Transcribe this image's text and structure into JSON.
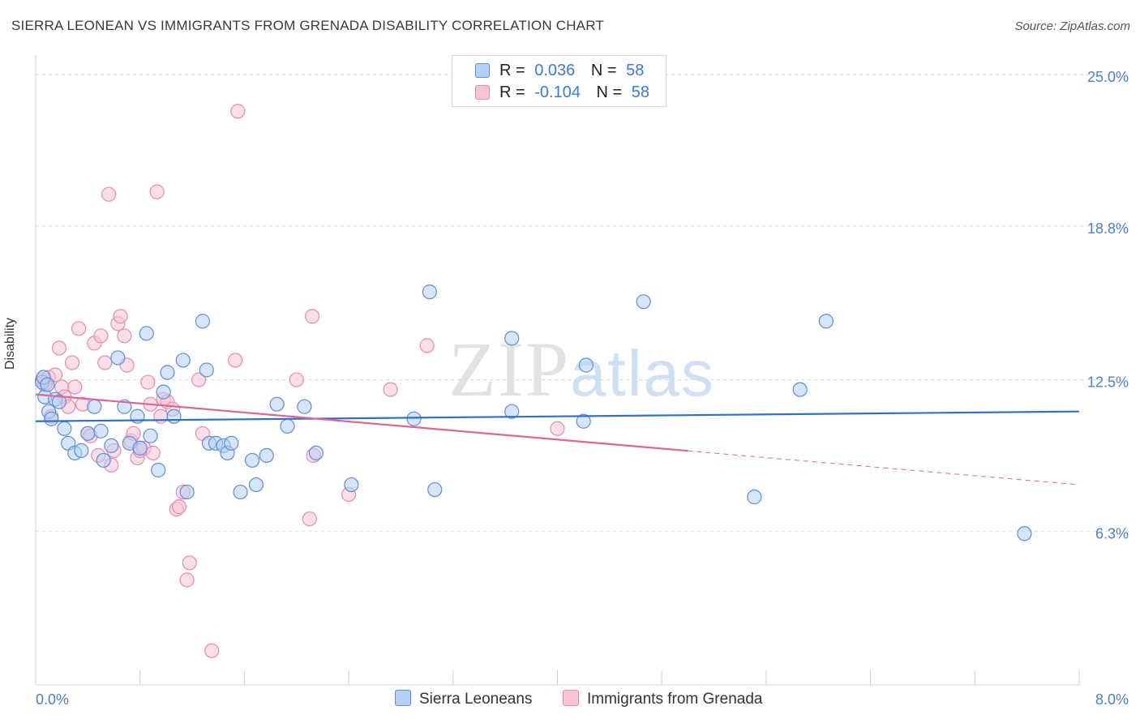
{
  "header": {
    "title": "SIERRA LEONEAN VS IMMIGRANTS FROM GRENADA DISABILITY CORRELATION CHART",
    "source": "Source: ZipAtlas.com"
  },
  "watermark": {
    "zip": "ZIP",
    "atlas": "atlas"
  },
  "legend": {
    "rows": [
      {
        "r_label": "R =",
        "r_value": "0.036",
        "n_label": "N =",
        "n_value": "58"
      },
      {
        "r_label": "R =",
        "r_value": "-0.104",
        "n_label": "N =",
        "n_value": "58"
      }
    ]
  },
  "bottom_legend": {
    "series1": "Sierra Leoneans",
    "series2": "Immigrants from Grenada"
  },
  "colors": {
    "blue_fill": "#b5d0f5",
    "blue_stroke": "#5a8fd8",
    "blue_line": "#2f6fce",
    "pink_fill": "#f8c3d5",
    "pink_stroke": "#e68bab",
    "pink_line": "#e06592",
    "tick_text": "#4a7fd0",
    "grid": "#d8d8d8"
  },
  "chart_data": {
    "type": "scatter",
    "title": "SIERRA LEONEAN VS IMMIGRANTS FROM GRENADA DISABILITY CORRELATION CHART",
    "xlabel": "",
    "ylabel": "Disability",
    "xlim": [
      0.0,
      8.0
    ],
    "ylim": [
      0.0,
      25.8
    ],
    "x_tick_labels": [
      "0.0%",
      "8.0%"
    ],
    "y_ticks": [
      6.3,
      12.5,
      18.8,
      25.0
    ],
    "y_tick_labels": [
      "6.3%",
      "12.5%",
      "18.8%",
      "25.0%"
    ],
    "grid": true,
    "legend_position": "top-center",
    "series": [
      {
        "name": "Sierra Leoneans",
        "r": 0.036,
        "n": 58,
        "trend": {
          "x": [
            0.0,
            8.0
          ],
          "y": [
            10.8,
            11.2
          ],
          "dashed_from": null
        },
        "points": [
          [
            0.05,
            12.4
          ],
          [
            0.07,
            11.8
          ],
          [
            0.1,
            11.2
          ],
          [
            0.12,
            10.9
          ],
          [
            0.15,
            11.7
          ],
          [
            0.18,
            11.6
          ],
          [
            0.22,
            10.5
          ],
          [
            0.25,
            9.9
          ],
          [
            0.3,
            9.5
          ],
          [
            0.35,
            9.6
          ],
          [
            0.4,
            10.3
          ],
          [
            0.45,
            11.4
          ],
          [
            0.5,
            10.4
          ],
          [
            0.52,
            9.2
          ],
          [
            0.58,
            9.8
          ],
          [
            0.63,
            13.4
          ],
          [
            0.68,
            11.4
          ],
          [
            0.72,
            9.9
          ],
          [
            0.78,
            11.0
          ],
          [
            0.8,
            9.7
          ],
          [
            0.85,
            14.4
          ],
          [
            0.88,
            10.2
          ],
          [
            0.94,
            8.8
          ],
          [
            0.98,
            12.0
          ],
          [
            1.01,
            12.8
          ],
          [
            1.06,
            11.0
          ],
          [
            1.13,
            13.3
          ],
          [
            1.16,
            7.9
          ],
          [
            1.28,
            14.9
          ],
          [
            1.31,
            12.9
          ],
          [
            1.33,
            9.9
          ],
          [
            1.38,
            9.9
          ],
          [
            1.44,
            9.8
          ],
          [
            1.47,
            9.5
          ],
          [
            1.5,
            9.9
          ],
          [
            1.57,
            7.9
          ],
          [
            1.66,
            9.2
          ],
          [
            1.69,
            8.2
          ],
          [
            1.77,
            9.4
          ],
          [
            1.85,
            11.5
          ],
          [
            1.93,
            10.6
          ],
          [
            2.06,
            11.4
          ],
          [
            2.15,
            9.5
          ],
          [
            2.42,
            8.2
          ],
          [
            2.9,
            10.9
          ],
          [
            3.02,
            16.1
          ],
          [
            3.06,
            8.0
          ],
          [
            3.65,
            11.2
          ],
          [
            3.65,
            14.2
          ],
          [
            4.2,
            10.8
          ],
          [
            4.22,
            13.1
          ],
          [
            4.66,
            15.7
          ],
          [
            5.51,
            7.7
          ],
          [
            5.86,
            12.1
          ],
          [
            6.06,
            14.9
          ],
          [
            7.58,
            6.2
          ],
          [
            0.06,
            12.6
          ],
          [
            0.09,
            12.3
          ]
        ]
      },
      {
        "name": "Immigrants from Grenada",
        "r": -0.104,
        "n": 58,
        "trend": {
          "x": [
            0.0,
            8.0
          ],
          "y": [
            11.9,
            8.2
          ],
          "dashed_from": 5.0
        },
        "points": [
          [
            0.05,
            12.5
          ],
          [
            0.08,
            12.4
          ],
          [
            0.1,
            12.6
          ],
          [
            0.12,
            11.0
          ],
          [
            0.15,
            12.7
          ],
          [
            0.18,
            13.8
          ],
          [
            0.2,
            12.2
          ],
          [
            0.22,
            11.8
          ],
          [
            0.25,
            11.4
          ],
          [
            0.28,
            13.2
          ],
          [
            0.3,
            12.2
          ],
          [
            0.33,
            14.6
          ],
          [
            0.36,
            11.5
          ],
          [
            0.4,
            10.3
          ],
          [
            0.42,
            10.2
          ],
          [
            0.45,
            14.0
          ],
          [
            0.48,
            9.4
          ],
          [
            0.5,
            14.3
          ],
          [
            0.53,
            13.2
          ],
          [
            0.56,
            20.1
          ],
          [
            0.58,
            9.0
          ],
          [
            0.6,
            9.6
          ],
          [
            0.63,
            14.8
          ],
          [
            0.65,
            15.1
          ],
          [
            0.68,
            14.3
          ],
          [
            0.7,
            13.1
          ],
          [
            0.73,
            10.0
          ],
          [
            0.75,
            10.3
          ],
          [
            0.78,
            9.3
          ],
          [
            0.8,
            9.6
          ],
          [
            0.83,
            9.7
          ],
          [
            0.86,
            12.4
          ],
          [
            0.88,
            11.5
          ],
          [
            0.9,
            9.5
          ],
          [
            0.93,
            20.2
          ],
          [
            0.96,
            11.0
          ],
          [
            0.98,
            11.7
          ],
          [
            1.01,
            11.6
          ],
          [
            1.05,
            11.3
          ],
          [
            1.08,
            7.2
          ],
          [
            1.1,
            7.3
          ],
          [
            1.13,
            7.9
          ],
          [
            1.16,
            4.3
          ],
          [
            1.18,
            5.0
          ],
          [
            1.25,
            12.5
          ],
          [
            1.28,
            10.3
          ],
          [
            1.35,
            1.4
          ],
          [
            1.53,
            13.3
          ],
          [
            1.55,
            23.5
          ],
          [
            2.0,
            12.5
          ],
          [
            2.1,
            6.8
          ],
          [
            2.12,
            15.1
          ],
          [
            2.13,
            9.4
          ],
          [
            2.4,
            7.8
          ],
          [
            2.72,
            12.1
          ],
          [
            3.0,
            13.9
          ],
          [
            4.0,
            10.5
          ],
          [
            0.07,
            12.3
          ]
        ]
      }
    ]
  }
}
